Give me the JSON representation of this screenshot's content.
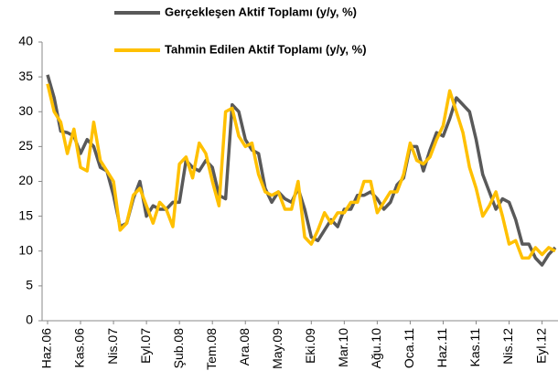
{
  "chart_data": {
    "type": "line",
    "categories": [
      "Haz.06",
      null,
      null,
      null,
      null,
      "Kas.06",
      null,
      null,
      null,
      null,
      "Nis.07",
      null,
      null,
      null,
      null,
      "Eyl.07",
      null,
      null,
      null,
      null,
      "Şub.08",
      null,
      null,
      null,
      null,
      "Tem.08",
      null,
      null,
      null,
      null,
      "Ara.08",
      null,
      null,
      null,
      null,
      "May.09",
      null,
      null,
      null,
      null,
      "Eki.09",
      null,
      null,
      null,
      null,
      "Mar.10",
      null,
      null,
      null,
      null,
      "Ağu.10",
      null,
      null,
      null,
      null,
      "Oca.11",
      null,
      null,
      null,
      null,
      "Haz.11",
      null,
      null,
      null,
      null,
      "Kas.11",
      null,
      null,
      null,
      null,
      "Nis.12",
      null,
      null,
      null,
      null,
      "Eyl.12",
      null,
      null
    ],
    "series": [
      {
        "name": "Gerçekleşen Aktif Toplamı (y/y, %)",
        "color": "#595959",
        "values": [
          35.3,
          32,
          27.2,
          27,
          26.5,
          24,
          26,
          25,
          22,
          21.5,
          18,
          13.5,
          14,
          17.5,
          20,
          15,
          16.5,
          16,
          16,
          17,
          17,
          23,
          22,
          21.5,
          23,
          22,
          18,
          17.5,
          31,
          30,
          26,
          24.5,
          24,
          19,
          17,
          18.5,
          17.5,
          17,
          19,
          16,
          12,
          11.5,
          13,
          14.5,
          13.5,
          16,
          16,
          18,
          18,
          18.5,
          17.5,
          16,
          17,
          19.5,
          20.5,
          25,
          25,
          21.5,
          24.5,
          27,
          26.5,
          29,
          32,
          31,
          30,
          26,
          21,
          18.5,
          16,
          17.5,
          17,
          14.5,
          11,
          11,
          9,
          8,
          9.5,
          10.5
        ]
      },
      {
        "name": "Tahmin Edilen Aktif Toplamı (y/y, %)",
        "color": "#ffc000",
        "values": [
          34,
          30,
          28.5,
          24,
          27.5,
          22,
          21.5,
          28.5,
          23,
          21.5,
          20,
          13,
          14,
          18,
          19,
          16.5,
          14,
          17,
          16,
          13.5,
          22.5,
          23.5,
          20.5,
          25.5,
          24,
          20,
          16.5,
          30,
          30.5,
          26.5,
          25,
          25.5,
          21,
          18.5,
          18,
          18.5,
          16,
          16,
          20,
          12,
          11,
          13,
          15.5,
          14,
          15.5,
          15.5,
          17,
          17,
          20,
          20,
          15.5,
          17,
          18.5,
          18.5,
          21,
          25.5,
          23,
          22.5,
          23.5,
          26,
          28,
          33,
          30,
          27,
          22,
          19,
          15,
          16.5,
          18.5,
          15,
          11,
          11.5,
          9,
          9,
          10.5,
          9.5,
          10.5,
          10
        ]
      }
    ],
    "ylim": [
      0,
      40
    ],
    "yticks": [
      0,
      5,
      10,
      15,
      20,
      25,
      30,
      35,
      40
    ]
  }
}
